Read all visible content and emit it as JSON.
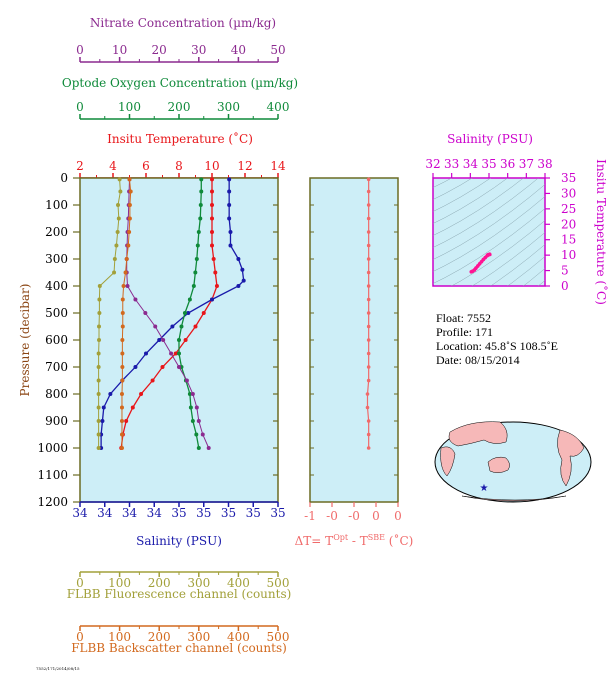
{
  "colors": {
    "nitrate": "#8b2a8f",
    "oxygen": "#0f8a3a",
    "temperature": "#e8161a",
    "salinity": "#1a1aaa",
    "fluorescence": "#a2a03a",
    "backscatter": "#d2691e",
    "delta_t": "#f06a6a",
    "ts_axis": "#cc00cc",
    "panel_bg": "#cdeef7",
    "panel_border": "#6b6b23"
  },
  "info": {
    "float": "Float:  7552",
    "profile": "Profile:  171",
    "location": "Location:  45.8˚S  108.5˚E",
    "date": "Date:  08/15/2014"
  },
  "footer_code": "7552/171/2014/08/15",
  "chart_data": [
    {
      "type": "line",
      "name": "main-profile",
      "ylabel": "Pressure (decibar)",
      "ylim": [
        1200,
        0
      ],
      "yticks": [
        "0",
        "100",
        "200",
        "300",
        "400",
        "500",
        "600",
        "700",
        "800",
        "900",
        "1000",
        "1100",
        "1200"
      ],
      "axes": [
        {
          "key": "nitrate",
          "label": "Nitrate Concentration (µm/kg)",
          "range": [
            0,
            50
          ],
          "ticks": [
            "0",
            "10",
            "20",
            "30",
            "40",
            "50"
          ]
        },
        {
          "key": "oxygen",
          "label": "Optode Oxygen Concentration (µm/kg)",
          "range": [
            0,
            400
          ],
          "ticks": [
            "0",
            "100",
            "200",
            "300",
            "400"
          ]
        },
        {
          "key": "temperature",
          "label": "Insitu Temperature (˚C)",
          "range": [
            2,
            14
          ],
          "ticks": [
            "2",
            "4",
            "6",
            "8",
            "10",
            "12",
            "14"
          ]
        },
        {
          "key": "salinity",
          "label": "Salinity (PSU)",
          "range": [
            33.8,
            35.3
          ],
          "ticks": [
            "34",
            "34",
            "34",
            "34",
            "35",
            "35",
            "35",
            "35",
            "35"
          ]
        },
        {
          "key": "fluorescence",
          "label": "FLBB Fluorescence channel (counts)",
          "range": [
            0,
            500
          ],
          "ticks": [
            "0",
            "100",
            "200",
            "300",
            "400",
            "500"
          ]
        },
        {
          "key": "backscatter",
          "label": "FLBB Backscatter channel (counts)",
          "range": [
            0,
            500
          ],
          "ticks": [
            "0",
            "100",
            "200",
            "300",
            "400",
            "500"
          ]
        }
      ],
      "series": [
        {
          "key": "temperature",
          "p": [
            5,
            50,
            100,
            150,
            200,
            250,
            300,
            350,
            400,
            450,
            500,
            550,
            600,
            650,
            700,
            750,
            800,
            850,
            900,
            950,
            1000
          ],
          "values": [
            10,
            10,
            10,
            10,
            10,
            10,
            10.1,
            10.2,
            10.3,
            10,
            9.5,
            9.0,
            8.4,
            7.8,
            7.0,
            6.4,
            5.7,
            5.2,
            4.8,
            4.6,
            4.5
          ]
        },
        {
          "key": "salinity",
          "p": [
            5,
            50,
            100,
            150,
            200,
            250,
            300,
            340,
            380,
            400,
            450,
            500,
            550,
            600,
            650,
            700,
            750,
            800,
            850,
            900,
            950,
            1000
          ],
          "values": [
            34.93,
            34.93,
            34.93,
            34.93,
            34.94,
            34.94,
            35.0,
            35.03,
            35.04,
            35.0,
            34.8,
            34.62,
            34.5,
            34.4,
            34.3,
            34.22,
            34.12,
            34.03,
            33.98,
            33.97,
            33.96,
            33.96
          ]
        },
        {
          "key": "oxygen",
          "p": [
            5,
            50,
            100,
            150,
            200,
            250,
            300,
            350,
            400,
            450,
            500,
            550,
            600,
            650,
            700,
            750,
            800,
            850,
            900,
            950,
            1000
          ],
          "values": [
            245,
            245,
            244,
            243,
            240,
            238,
            236,
            233,
            230,
            222,
            212,
            205,
            200,
            200,
            205,
            214,
            222,
            224,
            228,
            235,
            240
          ]
        },
        {
          "key": "nitrate",
          "p": [
            5,
            50,
            100,
            150,
            200,
            250,
            300,
            350,
            400,
            450,
            500,
            550,
            600,
            650,
            700,
            750,
            800,
            850,
            900,
            950,
            1000
          ],
          "values": [
            12.5,
            12.4,
            12.3,
            12.2,
            12.0,
            11.9,
            11.8,
            11.8,
            12.0,
            14.0,
            16.5,
            19.0,
            21.0,
            23.0,
            25.0,
            27.0,
            28.5,
            29.5,
            30.0,
            31.0,
            32.5
          ]
        },
        {
          "key": "fluorescence",
          "p": [
            5,
            50,
            100,
            150,
            200,
            250,
            300,
            350,
            400,
            450,
            500,
            550,
            600,
            650,
            700,
            750,
            800,
            850,
            900,
            950,
            1000
          ],
          "values": [
            100,
            102,
            96,
            98,
            95,
            92,
            88,
            86,
            50,
            49,
            49,
            48,
            48,
            47,
            47,
            47,
            47,
            47,
            47,
            47,
            47
          ]
        },
        {
          "key": "backscatter",
          "p": [
            5,
            50,
            100,
            150,
            200,
            250,
            300,
            350,
            400,
            450,
            500,
            550,
            600,
            650,
            700,
            750,
            800,
            850,
            900,
            950,
            1000
          ],
          "values": [
            125,
            128,
            126,
            126,
            124,
            122,
            118,
            115,
            110,
            108,
            108,
            108,
            107,
            107,
            107,
            107,
            106,
            106,
            106,
            106,
            106
          ]
        }
      ]
    },
    {
      "type": "line",
      "name": "delta-t",
      "xlabel": "ΔT= T",
      "xlabel_sup1": "Opt",
      "xlabel_mid": " - T",
      "xlabel_sup2": "SBE",
      "xlabel_end": " (˚C)",
      "xlim": [
        -1,
        0.5
      ],
      "xticks": [
        "-1",
        "-0",
        "-0",
        "0",
        "0"
      ],
      "ylim": [
        1200,
        0
      ],
      "p": [
        5,
        50,
        100,
        150,
        200,
        250,
        300,
        350,
        400,
        450,
        500,
        550,
        600,
        650,
        700,
        750,
        800,
        850,
        900,
        950,
        1000
      ],
      "values": [
        0,
        0,
        0,
        0,
        0,
        0,
        0,
        0,
        0,
        0,
        0,
        0,
        0,
        0,
        0,
        0,
        -0.02,
        -0.02,
        0,
        0,
        0
      ]
    },
    {
      "type": "scatter",
      "name": "ts-diagram",
      "xlabel": "Salinity (PSU)",
      "ylabel": "Insitu Temperature (˚C)",
      "xlim": [
        32,
        38
      ],
      "ylim": [
        0,
        35
      ],
      "xticks": [
        "32",
        "33",
        "34",
        "35",
        "36",
        "37",
        "38"
      ],
      "yticks": [
        "0",
        "5",
        "10",
        "15",
        "20",
        "25",
        "30",
        "35"
      ],
      "points": [
        [
          34.93,
          10.0
        ],
        [
          34.94,
          10.1
        ],
        [
          35.03,
          10.3
        ],
        [
          35.04,
          10.2
        ],
        [
          34.9,
          9.8
        ],
        [
          34.8,
          9.2
        ],
        [
          34.7,
          8.6
        ],
        [
          34.6,
          7.9
        ],
        [
          34.5,
          7.2
        ],
        [
          34.4,
          6.5
        ],
        [
          34.3,
          5.8
        ],
        [
          34.22,
          5.2
        ],
        [
          34.12,
          4.8
        ],
        [
          34.05,
          4.6
        ]
      ]
    }
  ]
}
